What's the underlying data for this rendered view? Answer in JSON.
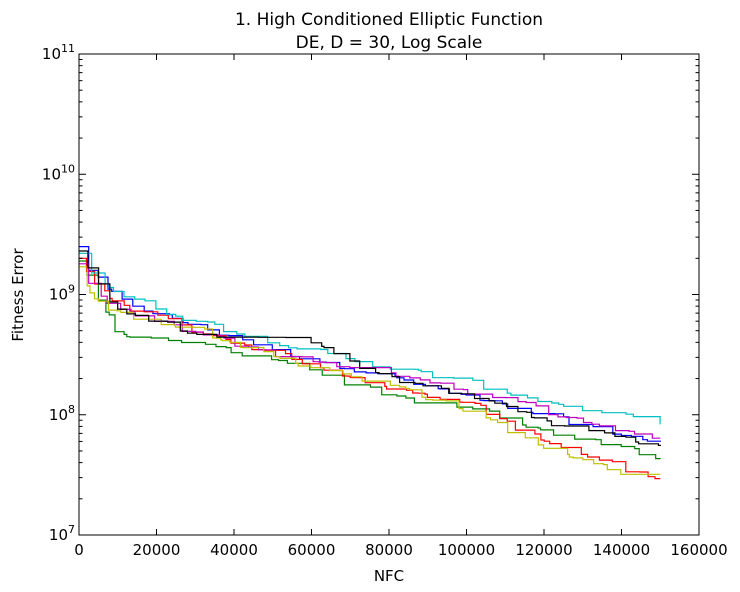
{
  "chart_data": {
    "type": "line",
    "title_line1": "1.   High Conditioned Elliptic Function",
    "title_line2": "DE, D = 30, Log Scale",
    "xlabel": "NFC",
    "ylabel": "Fitness Error",
    "xlim": [
      0,
      160000
    ],
    "ylim": [
      10000000,
      100000000000
    ],
    "yscale": "log",
    "grid": false,
    "x_ticks": [
      {
        "value": 0,
        "label": "0"
      },
      {
        "value": 20000,
        "label": "20000"
      },
      {
        "value": 40000,
        "label": "40000"
      },
      {
        "value": 60000,
        "label": "60000"
      },
      {
        "value": 80000,
        "label": "80000"
      },
      {
        "value": 100000,
        "label": "100000"
      },
      {
        "value": 120000,
        "label": "120000"
      },
      {
        "value": 140000,
        "label": "140000"
      },
      {
        "value": 160000,
        "label": "160000"
      }
    ],
    "y_ticks": [
      {
        "value": 10000000,
        "base": "10",
        "exp": "7"
      },
      {
        "value": 100000000,
        "base": "10",
        "exp": "8"
      },
      {
        "value": 1000000000,
        "base": "10",
        "exp": "9"
      },
      {
        "value": 10000000000,
        "base": "10",
        "exp": "10"
      },
      {
        "value": 100000000000,
        "base": "10",
        "exp": "11"
      }
    ],
    "series": [
      {
        "color": "#0000ff",
        "x": [
          0,
          3000,
          10000,
          30000,
          55000,
          80000,
          100000,
          120000,
          140000,
          150000
        ],
        "y": [
          2500000000,
          1500000000,
          900000000,
          550000000,
          320000000,
          210000000,
          140000000,
          100000000,
          70000000,
          58000000
        ]
      },
      {
        "color": "#008000",
        "x": [
          0,
          3000,
          10000,
          30000,
          55000,
          80000,
          100000,
          120000,
          140000,
          150000
        ],
        "y": [
          1900000000,
          1200000000,
          480000000,
          400000000,
          270000000,
          140000000,
          120000000,
          75000000,
          55000000,
          42000000
        ]
      },
      {
        "color": "#ff0000",
        "x": [
          0,
          3000,
          10000,
          30000,
          55000,
          80000,
          100000,
          120000,
          140000,
          150000
        ],
        "y": [
          2000000000,
          1300000000,
          850000000,
          500000000,
          300000000,
          170000000,
          130000000,
          60000000,
          36000000,
          31000000
        ]
      },
      {
        "color": "#00bfbf",
        "x": [
          0,
          3000,
          10000,
          30000,
          55000,
          80000,
          100000,
          120000,
          140000,
          150000
        ],
        "y": [
          2200000000,
          1600000000,
          1000000000,
          600000000,
          380000000,
          250000000,
          190000000,
          130000000,
          100000000,
          90000000
        ]
      },
      {
        "color": "#bf00bf",
        "x": [
          0,
          3000,
          10000,
          30000,
          55000,
          80000,
          100000,
          120000,
          140000,
          150000
        ],
        "y": [
          1800000000,
          1100000000,
          750000000,
          480000000,
          300000000,
          230000000,
          160000000,
          110000000,
          75000000,
          65000000
        ]
      },
      {
        "color": "#bfbf00",
        "x": [
          0,
          3000,
          10000,
          30000,
          55000,
          80000,
          100000,
          120000,
          140000,
          150000
        ],
        "y": [
          1700000000,
          1000000000,
          700000000,
          520000000,
          280000000,
          180000000,
          110000000,
          55000000,
          34000000,
          34000000
        ]
      },
      {
        "color": "#000000",
        "x": [
          0,
          3000,
          10000,
          30000,
          55000,
          80000,
          100000,
          120000,
          140000,
          150000
        ],
        "y": [
          2300000000,
          1400000000,
          780000000,
          460000000,
          470000000,
          200000000,
          150000000,
          90000000,
          65000000,
          56000000
        ]
      }
    ]
  }
}
